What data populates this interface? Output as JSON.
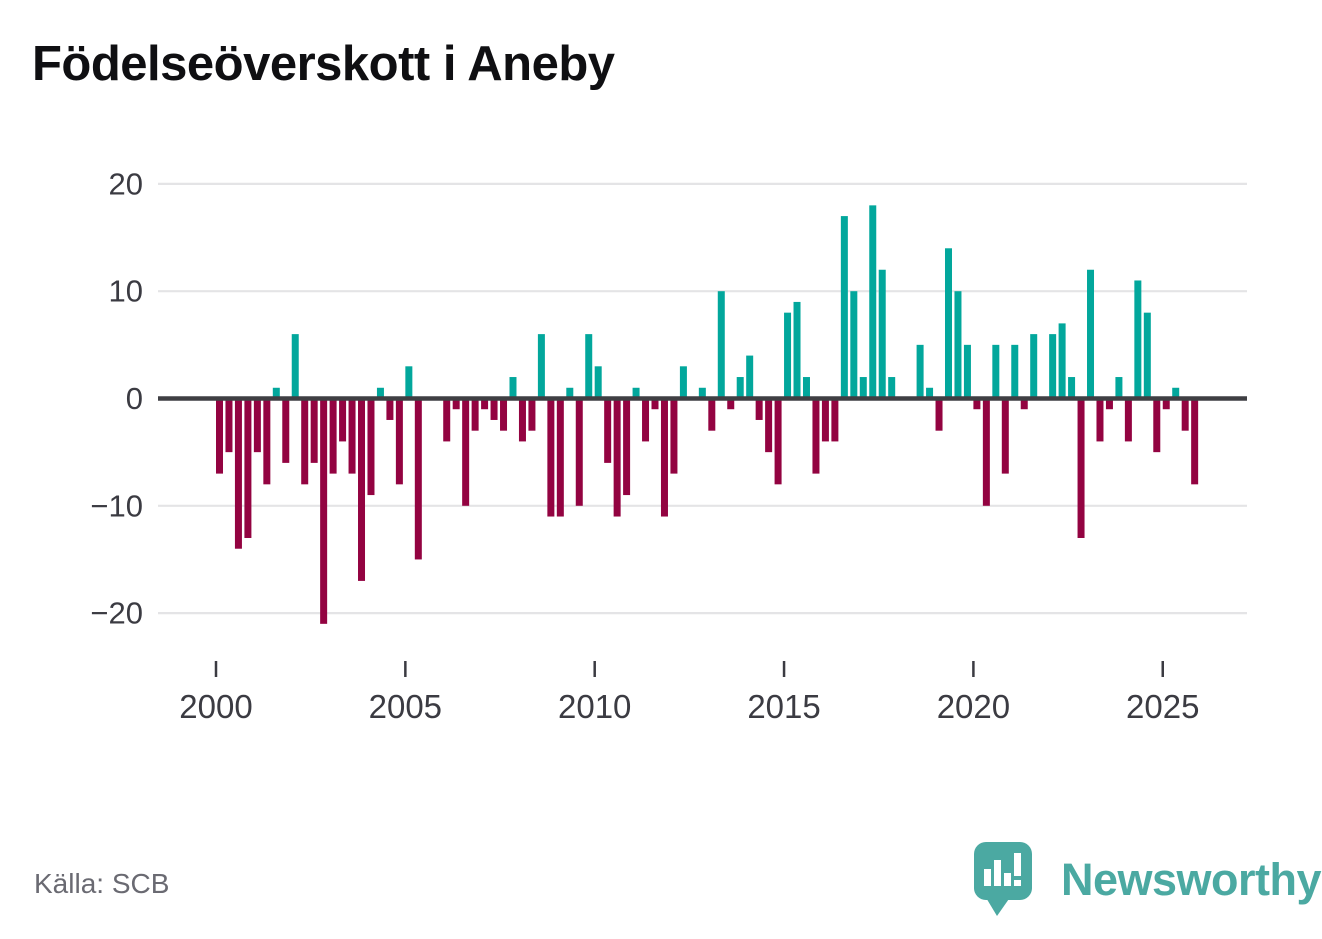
{
  "title": "Födelseöverskott i Aneby",
  "source_caption": "Källa: SCB",
  "branding": {
    "logo_text": "Newsworthy",
    "color": "#4BA9A2"
  },
  "chart_data": {
    "type": "bar",
    "title": "Födelseöverskott i Aneby",
    "frequency": "quarterly",
    "start_year": 2000,
    "values": [
      -7,
      -5,
      -14,
      -13,
      -5,
      -8,
      1,
      -6,
      6,
      -8,
      -6,
      -21,
      -7,
      -4,
      -7,
      -17,
      -9,
      1,
      -2,
      -8,
      3,
      -15,
      0,
      0,
      -4,
      -1,
      -10,
      -3,
      -1,
      -2,
      -3,
      2,
      -4,
      -3,
      6,
      -11,
      -11,
      1,
      -10,
      6,
      3,
      -6,
      -11,
      -9,
      1,
      -4,
      -1,
      -11,
      -7,
      3,
      0,
      1,
      -3,
      10,
      -1,
      2,
      4,
      -2,
      -5,
      -8,
      8,
      9,
      2,
      -7,
      -4,
      -4,
      17,
      10,
      2,
      18,
      12,
      2,
      0,
      0,
      5,
      1,
      -3,
      14,
      10,
      5,
      -1,
      -10,
      5,
      -7,
      5,
      -1,
      6,
      0,
      6,
      7,
      2,
      -13,
      12,
      -4,
      -1,
      2,
      -4,
      11,
      8,
      -5,
      -1,
      1,
      -3,
      -8
    ],
    "y_ticks": [
      {
        "value": 20,
        "label": "20"
      },
      {
        "value": 10,
        "label": "10"
      },
      {
        "value": 0,
        "label": "0"
      },
      {
        "value": -10,
        "label": "−10"
      },
      {
        "value": -20,
        "label": "−20"
      }
    ],
    "x_ticks": [
      {
        "value": 2000,
        "label": "2000"
      },
      {
        "value": 2005,
        "label": "2005"
      },
      {
        "value": 2010,
        "label": "2010"
      },
      {
        "value": 2015,
        "label": "2015"
      },
      {
        "value": 2020,
        "label": "2020"
      },
      {
        "value": 2025,
        "label": "2025"
      }
    ],
    "ylim": [
      -22,
      21
    ],
    "grid": true,
    "legend_position": "none",
    "colors": {
      "positive": "#02A79C",
      "negative": "#930341",
      "zero_line": "#3F3F43",
      "gridline": "#E4E4E6",
      "tick_label": "#3B3B42"
    }
  }
}
